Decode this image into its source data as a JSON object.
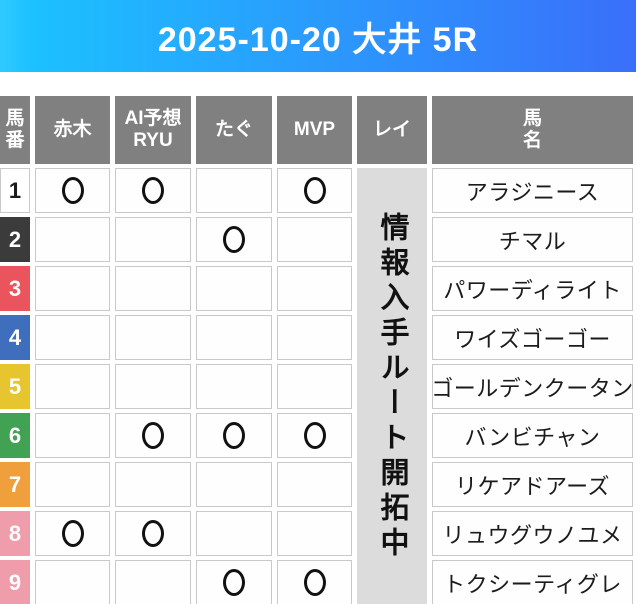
{
  "banner": {
    "title": "2025-10-20 大井 5R",
    "gradient_start": "#2fcaff",
    "gradient_mid": "#1cc1ff",
    "gradient_end": "#3a6ffa",
    "text_color": "#ffffff"
  },
  "table": {
    "columns": [
      {
        "key": "num",
        "label": "馬番",
        "label_lines": [
          "馬",
          "番"
        ]
      },
      {
        "key": "akagi",
        "label": "赤木",
        "label_lines": [
          "赤木"
        ]
      },
      {
        "key": "ai",
        "label": "AI予想RYU",
        "label_lines": [
          "AI予想",
          "RYU"
        ]
      },
      {
        "key": "tagu",
        "label": "たぐ",
        "label_lines": [
          "たぐ"
        ]
      },
      {
        "key": "mvp",
        "label": "MVP",
        "label_lines": [
          "MVP"
        ]
      },
      {
        "key": "rei",
        "label": "レイ",
        "label_lines": [
          "レイ"
        ]
      },
      {
        "key": "name",
        "label": "馬名",
        "label_lines": [
          "馬",
          "名"
        ]
      }
    ],
    "mark_keys": [
      "akagi",
      "ai",
      "tagu",
      "mvp"
    ],
    "mark_symbol": "〇",
    "rei_notice": "情報入手ルート開拓中",
    "rows": [
      {
        "num": "1",
        "color": "#ffffff",
        "text_color": "#1b1b1b",
        "marks": {
          "akagi": true,
          "ai": true,
          "tagu": false,
          "mvp": true
        },
        "name": "アラジニース"
      },
      {
        "num": "2",
        "color": "#3b3b3b",
        "text_color": "#ffffff",
        "marks": {
          "akagi": false,
          "ai": false,
          "tagu": true,
          "mvp": false
        },
        "name": "チマル"
      },
      {
        "num": "3",
        "color": "#e9545d",
        "text_color": "#ffffff",
        "marks": {
          "akagi": false,
          "ai": false,
          "tagu": false,
          "mvp": false
        },
        "name": "パワーディライト"
      },
      {
        "num": "4",
        "color": "#3f6ebc",
        "text_color": "#ffffff",
        "marks": {
          "akagi": false,
          "ai": false,
          "tagu": false,
          "mvp": false
        },
        "name": "ワイズゴーゴー"
      },
      {
        "num": "5",
        "color": "#e7c52f",
        "text_color": "#ffffff",
        "marks": {
          "akagi": false,
          "ai": false,
          "tagu": false,
          "mvp": false
        },
        "name": "ゴールデンクータン"
      },
      {
        "num": "6",
        "color": "#42a254",
        "text_color": "#ffffff",
        "marks": {
          "akagi": false,
          "ai": true,
          "tagu": true,
          "mvp": true
        },
        "name": "バンビチャン"
      },
      {
        "num": "7",
        "color": "#efa03c",
        "text_color": "#ffffff",
        "marks": {
          "akagi": false,
          "ai": false,
          "tagu": false,
          "mvp": false
        },
        "name": "リケアドアーズ"
      },
      {
        "num": "8",
        "color": "#f09dab",
        "text_color": "#ffffff",
        "marks": {
          "akagi": true,
          "ai": true,
          "tagu": false,
          "mvp": false
        },
        "name": "リュウグウノユメ"
      },
      {
        "num": "9",
        "color": "#f09dab",
        "text_color": "#ffffff",
        "marks": {
          "akagi": false,
          "ai": false,
          "tagu": true,
          "mvp": true
        },
        "name": "トクシーティグレ"
      }
    ]
  },
  "colors": {
    "header_bg": "#808080",
    "header_text": "#ffffff",
    "rei_bg": "#dcdcdc",
    "cell_border": "#c9c9c9",
    "mark_color": "#111111"
  }
}
